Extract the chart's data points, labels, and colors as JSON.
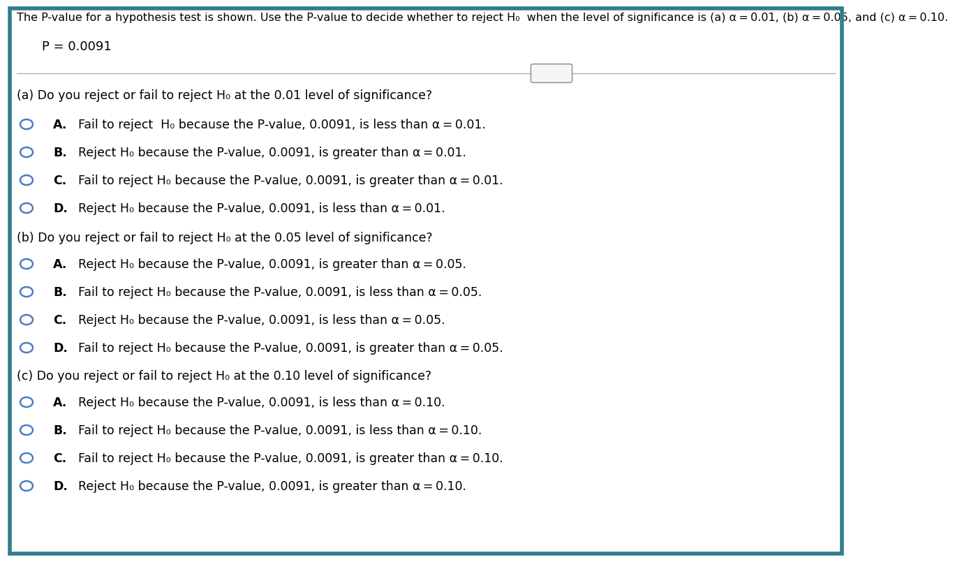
{
  "bg_color": "#ffffff",
  "border_color": "#2e7d8c",
  "header_text": "The P-value for a hypothesis test is shown. Use the P-value to decide whether to reject H₀  when the level of significance is (a) α = 0.01, (b) α = 0.05, and (c) α = 0.10.",
  "p_value_text": "P = 0.0091",
  "section_a_question": "(a) Do you reject or fail to reject H₀ at the 0.01 level of significance?",
  "section_b_question": "(b) Do you reject or fail to reject H₀ at the 0.05 level of significance?",
  "section_c_question": "(c) Do you reject or fail to reject H₀ at the 0.10 level of significance?",
  "section_a_choices": [
    [
      "A.",
      "  Fail to reject  H₀ because the P-value, 0.0091, is less than α = 0.01."
    ],
    [
      "B.",
      "  Reject H₀ because the P-value, 0.0091, is greater than α = 0.01."
    ],
    [
      "C.",
      "  Fail to reject H₀ because the P-value, 0.0091, is greater than α = 0.01."
    ],
    [
      "D.",
      "  Reject H₀ because the P-value, 0.0091, is less than α = 0.01."
    ]
  ],
  "section_b_choices": [
    [
      "A.",
      "  Reject H₀ because the P-value, 0.0091, is greater than α = 0.05."
    ],
    [
      "B.",
      "  Fail to reject H₀ because the P-value, 0.0091, is less than α = 0.05."
    ],
    [
      "C.",
      "  Reject H₀ because the P-value, 0.0091, is less than α = 0.05."
    ],
    [
      "D.",
      "  Fail to reject H₀ because the P-value, 0.0091, is greater than α = 0.05."
    ]
  ],
  "section_c_choices": [
    [
      "A.",
      "  Reject H₀ because the P-value, 0.0091, is less than α = 0.10."
    ],
    [
      "B.",
      "  Fail to reject H₀ because the P-value, 0.0091, is less than α = 0.10."
    ],
    [
      "C.",
      "  Fail to reject H₀ because the P-value, 0.0091, is greater than α = 0.10."
    ],
    [
      "D.",
      "  Reject H₀ because the P-value, 0.0091, is greater than α = 0.10."
    ]
  ],
  "circle_color": "#4a7fc1",
  "text_color": "#000000",
  "question_fontsize": 12.5,
  "choice_fontsize": 12.5,
  "header_fontsize": 11.5,
  "p_value_fontsize": 13.0,
  "bold_label_fontsize": 12.5
}
